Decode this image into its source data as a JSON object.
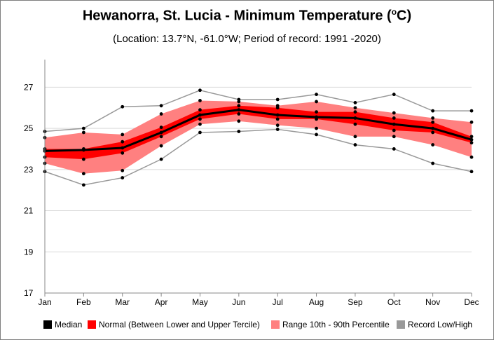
{
  "chart_data": {
    "type": "line",
    "title_main": "Hewanorra, St. Lucia - Minimum Temperature (",
    "title_sup": "o",
    "title_end": "C)",
    "subtitle": "(Location: 13.7°N, -61.0°W; Period of record: 1991 -2020)",
    "categories": [
      "Jan",
      "Feb",
      "Mar",
      "Apr",
      "May",
      "Jun",
      "Jul",
      "Aug",
      "Sep",
      "Oct",
      "Nov",
      "Dec"
    ],
    "ylim": [
      17,
      28
    ],
    "yticks": [
      "17",
      "19",
      "21",
      "23",
      "25",
      "27"
    ],
    "grid": "horizontal",
    "legend_position": "bottom",
    "series": [
      {
        "name": "Median",
        "color": "#000000",
        "values": [
          23.9,
          23.95,
          24.05,
          24.8,
          25.65,
          25.9,
          25.65,
          25.55,
          25.5,
          25.2,
          25.0,
          24.45
        ]
      },
      {
        "name": "Normal (Between Lower and Upper Tercile)",
        "color": "#ff0000",
        "lower": [
          23.6,
          23.5,
          23.8,
          24.6,
          25.45,
          25.7,
          25.45,
          25.45,
          25.2,
          24.9,
          24.8,
          24.3
        ],
        "upper": [
          24.0,
          24.0,
          24.35,
          25.05,
          25.9,
          26.1,
          26.0,
          25.8,
          25.8,
          25.5,
          25.3,
          24.6
        ]
      },
      {
        "name": "Range 10th - 90th Percentile",
        "color": "#ff8080",
        "lower": [
          23.3,
          22.8,
          22.95,
          24.15,
          25.2,
          25.35,
          25.15,
          25.0,
          24.6,
          24.6,
          24.2,
          23.6
        ],
        "upper": [
          24.55,
          24.8,
          24.7,
          25.7,
          26.35,
          26.3,
          26.1,
          26.3,
          26.0,
          25.75,
          25.5,
          25.3
        ]
      },
      {
        "name": "Record Low/High",
        "color": "#999999",
        "lower": [
          22.9,
          22.25,
          22.6,
          23.5,
          24.8,
          24.85,
          24.95,
          24.7,
          24.2,
          24.0,
          23.3,
          22.9
        ],
        "upper": [
          24.85,
          25.0,
          26.05,
          26.1,
          26.85,
          26.4,
          26.4,
          26.65,
          26.25,
          26.65,
          25.85,
          25.85
        ]
      }
    ]
  },
  "legend": {
    "median": "Median",
    "normal": "Normal (Between Lower and Upper Tercile)",
    "range": "Range 10th - 90th Percentile",
    "record": "Record Low/High"
  }
}
